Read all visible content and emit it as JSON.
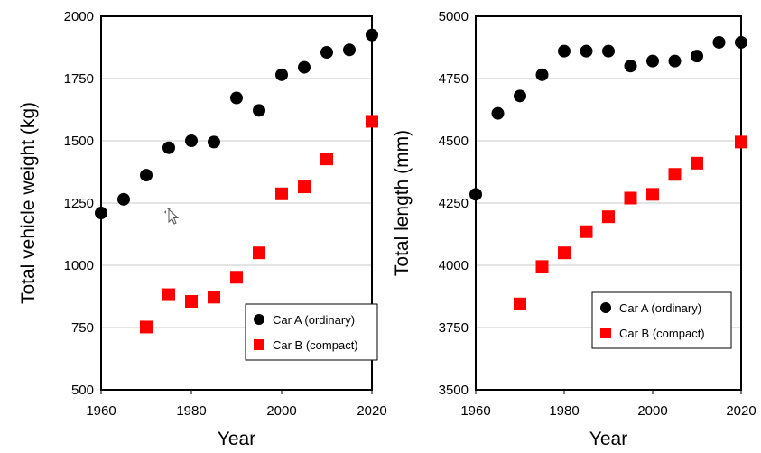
{
  "chart_data": [
    {
      "type": "scatter",
      "title": "",
      "xlabel": "Year",
      "ylabel": "Total vehicle weight (kg)",
      "xlim": [
        1960,
        2020
      ],
      "ylim": [
        500,
        2000
      ],
      "xticks": [
        1960,
        1980,
        2000,
        2020
      ],
      "yticks": [
        500,
        750,
        1000,
        1250,
        1500,
        1750,
        2000
      ],
      "grid": "horizontal",
      "legend_position": "bottom-right",
      "series": [
        {
          "name": "Car A (ordinary)",
          "marker": "circle",
          "color": "#000000",
          "points": [
            [
              1960,
              1210
            ],
            [
              1965,
              1265
            ],
            [
              1970,
              1362
            ],
            [
              1975,
              1472
            ],
            [
              1980,
              1500
            ],
            [
              1985,
              1495
            ],
            [
              1990,
              1672
            ],
            [
              1995,
              1622
            ],
            [
              2000,
              1765
            ],
            [
              2005,
              1795
            ],
            [
              2010,
              1855
            ],
            [
              2015,
              1865
            ],
            [
              2020,
              1925
            ]
          ]
        },
        {
          "name": "Car B (compact)",
          "marker": "square",
          "color": "#ff0000",
          "points": [
            [
              1970,
              752
            ],
            [
              1975,
              882
            ],
            [
              1980,
              855
            ],
            [
              1985,
              872
            ],
            [
              1990,
              952
            ],
            [
              1995,
              1050
            ],
            [
              2000,
              1287
            ],
            [
              2005,
              1315
            ],
            [
              2010,
              1427
            ],
            [
              2020,
              1578
            ]
          ]
        }
      ]
    },
    {
      "type": "scatter",
      "title": "",
      "xlabel": "Year",
      "ylabel": "Total length (mm)",
      "xlim": [
        1960,
        2020
      ],
      "ylim": [
        3500,
        5000
      ],
      "xticks": [
        1960,
        1980,
        2000,
        2020
      ],
      "yticks": [
        3500,
        3750,
        4000,
        4250,
        4500,
        4750,
        5000
      ],
      "grid": "horizontal",
      "legend_position": "bottom-right",
      "series": [
        {
          "name": "Car A (ordinary)",
          "marker": "circle",
          "color": "#000000",
          "points": [
            [
              1960,
              4285
            ],
            [
              1965,
              4610
            ],
            [
              1970,
              4680
            ],
            [
              1975,
              4765
            ],
            [
              1980,
              4860
            ],
            [
              1985,
              4860
            ],
            [
              1990,
              4860
            ],
            [
              1995,
              4800
            ],
            [
              2000,
              4820
            ],
            [
              2005,
              4820
            ],
            [
              2010,
              4840
            ],
            [
              2015,
              4895
            ],
            [
              2020,
              4895
            ]
          ]
        },
        {
          "name": "Car B (compact)",
          "marker": "square",
          "color": "#ff0000",
          "points": [
            [
              1970,
              3845
            ],
            [
              1975,
              3995
            ],
            [
              1980,
              4050
            ],
            [
              1985,
              4135
            ],
            [
              1990,
              4195
            ],
            [
              1995,
              4270
            ],
            [
              2000,
              4285
            ],
            [
              2005,
              4365
            ],
            [
              2010,
              4410
            ],
            [
              2020,
              4495
            ]
          ]
        }
      ]
    }
  ]
}
